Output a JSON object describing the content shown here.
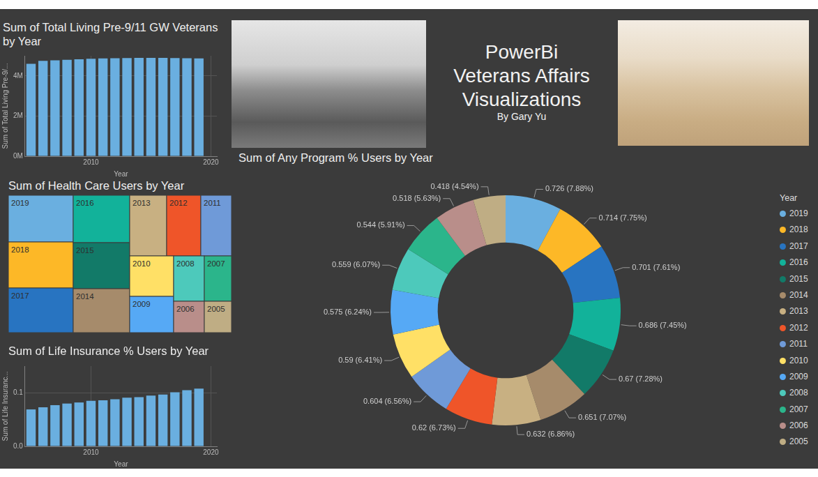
{
  "header": {
    "title": [
      "PowerBi",
      "Veterans Affairs",
      "Visualizations"
    ],
    "subtitle": "By Gary Yu"
  },
  "chart_data": [
    {
      "type": "bar",
      "title": "Sum of Total Living Pre-9/11 GW Veterans by Year",
      "x_label": "Year",
      "y_label": "Sum of Total Living Pre-9/...",
      "x": [
        2005,
        2006,
        2007,
        2008,
        2009,
        2010,
        2011,
        2012,
        2013,
        2014,
        2015,
        2016,
        2017,
        2018,
        2019
      ],
      "values": [
        4600000,
        4750000,
        4770000,
        4800000,
        4830000,
        4850000,
        4870000,
        4880000,
        4890000,
        4900000,
        4900000,
        4900000,
        4890000,
        4880000,
        4870000
      ],
      "color": "#6aafe0",
      "xlim": [
        2004.5,
        2020.5
      ],
      "xticks": [
        2010,
        2020
      ],
      "ylim": [
        0,
        5000000
      ],
      "yticks": [
        {
          "value": 0,
          "label": "0M"
        },
        {
          "value": 2000000,
          "label": "2M"
        },
        {
          "value": 4000000,
          "label": "4M"
        }
      ],
      "grid": true
    },
    {
      "type": "treemap",
      "title": "Sum of Health Care Users by Year",
      "categories": [
        "2019",
        "2018",
        "2017",
        "2016",
        "2015",
        "2014",
        "2013",
        "2012",
        "2011",
        "2010",
        "2009",
        "2008",
        "2007",
        "2006",
        "2005"
      ],
      "values": [
        6231,
        6138,
        5952,
        5508,
        5346,
        5103,
        4611,
        4263,
        3828,
        3654,
        3276,
        2860,
        2535,
        1980,
        1755
      ],
      "colors": [
        "#6aafe0",
        "#fdb827",
        "#2874c1",
        "#12b29a",
        "#127a68",
        "#a68b6b",
        "#c8b082",
        "#ef5529",
        "#6f9ad8",
        "#ffe066",
        "#56a9f5",
        "#4dc9bb",
        "#2bb58b",
        "#b98e8a",
        "#bfad84"
      ]
    },
    {
      "type": "doughnut",
      "title": "Sum of Any Program % Users by Year",
      "categories": [
        "2019",
        "2018",
        "2017",
        "2016",
        "2015",
        "2014",
        "2013",
        "2012",
        "2011",
        "2010",
        "2009",
        "2008",
        "2007",
        "2006",
        "2005"
      ],
      "values": [
        0.726,
        0.714,
        0.701,
        0.686,
        0.67,
        0.651,
        0.632,
        0.62,
        0.604,
        0.59,
        0.575,
        0.559,
        0.544,
        0.518,
        0.418
      ],
      "value_labels": [
        "0.726 (7.88%)",
        "0.714 (7.75%)",
        "0.701 (7.61%)",
        "0.686 (7.45%)",
        "0.67 (7.28%)",
        "0.651 (7.07%)",
        "0.632 (6.86%)",
        "0.62 (6.73%)",
        "0.604 (6.56%)",
        "0.59 (6.41%)",
        "0.575 (6.24%)",
        "0.559 (6.07%)",
        "0.544 (5.91%)",
        "0.518 (5.63%)",
        "0.418 (4.54%)"
      ],
      "colors": [
        "#6aafe0",
        "#fdb827",
        "#2874c1",
        "#12b29a",
        "#127a68",
        "#a68b6b",
        "#c8b082",
        "#ef5529",
        "#6f9ad8",
        "#ffe066",
        "#56a9f5",
        "#4dc9bb",
        "#2bb58b",
        "#b98e8a",
        "#bfad84"
      ],
      "data_labels": true,
      "legend": "right",
      "legend_title": "Year"
    },
    {
      "type": "bar",
      "title": "Sum of Life Insurance % Users by Year",
      "x_label": "Year",
      "y_label": "Sum of Life Insuranc...",
      "x": [
        2005,
        2006,
        2007,
        2008,
        2009,
        2010,
        2011,
        2012,
        2013,
        2014,
        2015,
        2016,
        2017,
        2018,
        2019
      ],
      "values": [
        0.069,
        0.073,
        0.077,
        0.08,
        0.082,
        0.085,
        0.086,
        0.088,
        0.091,
        0.092,
        0.095,
        0.097,
        0.101,
        0.105,
        0.108
      ],
      "color": "#6aafe0",
      "xlim": [
        2004.5,
        2020.5
      ],
      "xticks": [
        2010,
        2020
      ],
      "ylim": [
        0,
        0.15
      ],
      "yticks": [
        {
          "value": 0,
          "label": "0.0"
        },
        {
          "value": 0.1,
          "label": "0.1"
        }
      ],
      "grid": true
    }
  ]
}
